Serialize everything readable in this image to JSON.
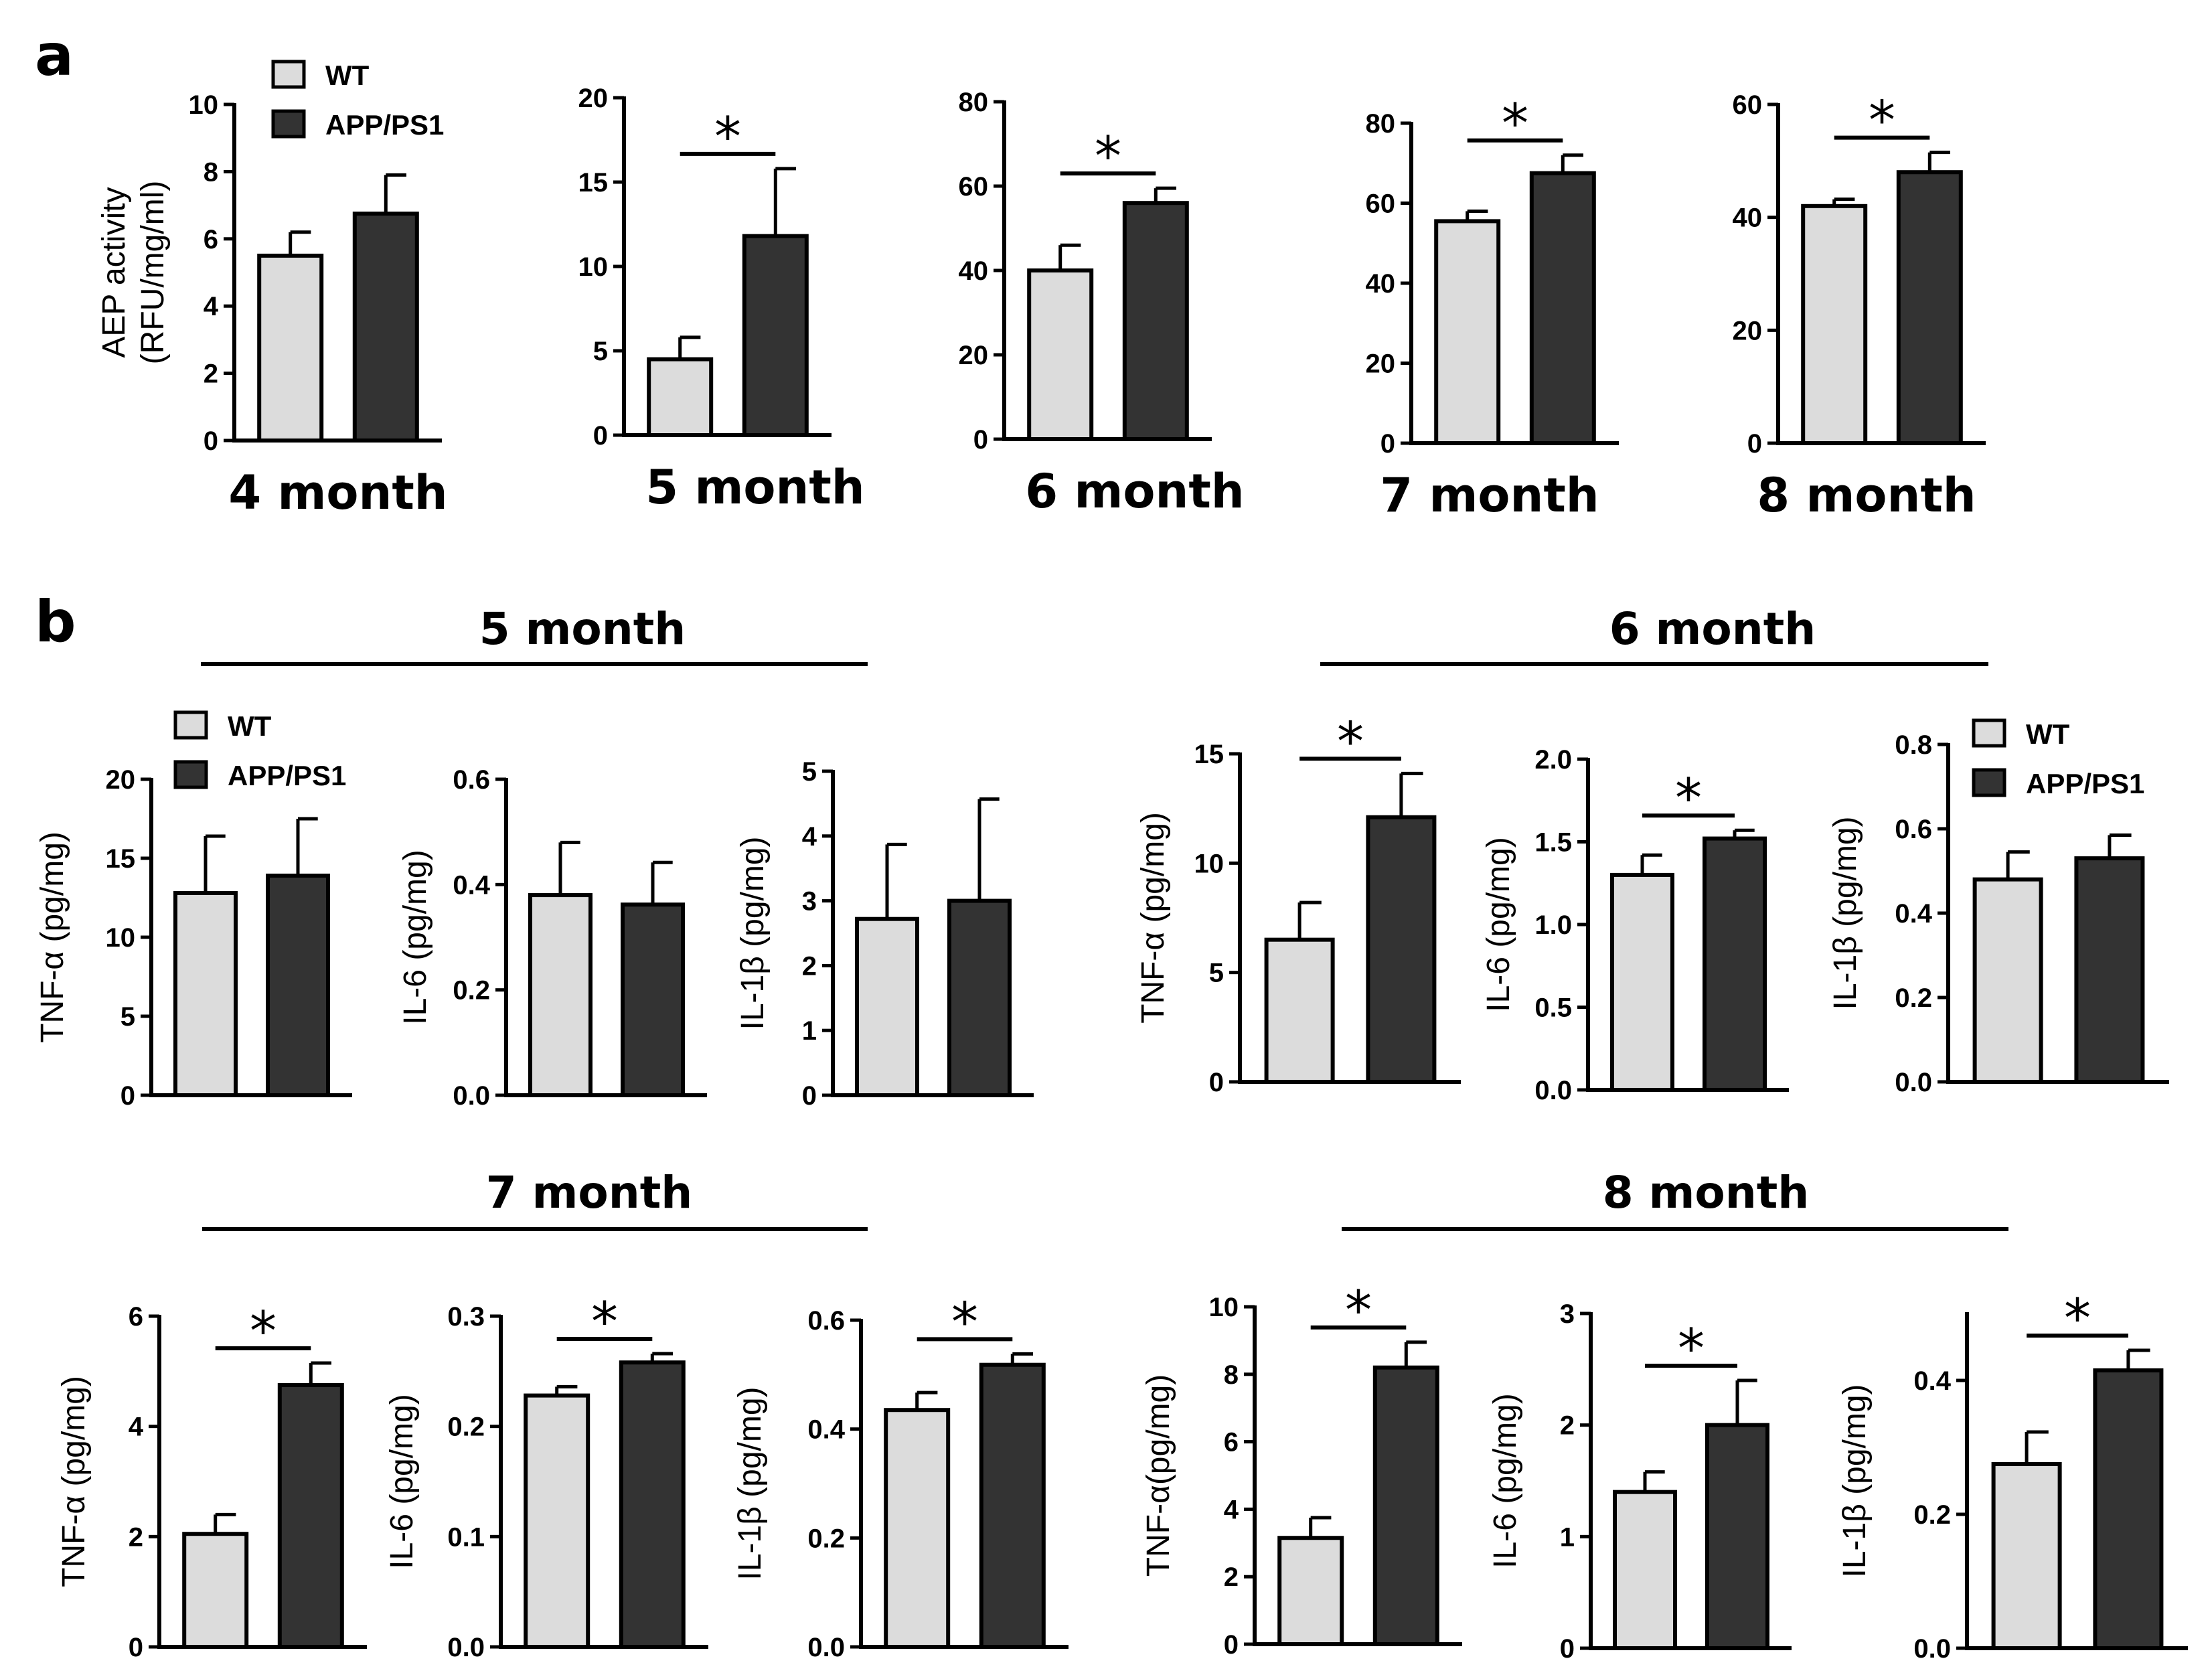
{
  "figure": {
    "panel_a_label": "a",
    "panel_b_label": "b",
    "groups_b": {
      "m5": "5 month",
      "m6": "6 month",
      "m7": "7 month",
      "m8": "8 month"
    }
  },
  "legend": {
    "wt": "WT",
    "app": "APP/PS1"
  },
  "colors": {
    "wt": "#dcdcdc",
    "app": "#333333",
    "axis": "#000000"
  },
  "chart_data": [
    {
      "id": "a4",
      "type": "bar",
      "xlabel": "4 month",
      "ylabel": "AEP activity (RFU/mg/ml)",
      "ylabel_line1": "AEP activity",
      "ylabel_line2": "(RFU/mg/ml)",
      "ylim": [
        0,
        10
      ],
      "ticks": [
        0,
        2,
        4,
        6,
        8,
        10
      ],
      "categories": [
        "WT",
        "APP/PS1"
      ],
      "values": [
        5.5,
        6.75
      ],
      "errors": [
        0.7,
        1.15
      ],
      "significant": false
    },
    {
      "id": "a5",
      "type": "bar",
      "xlabel": "5 month",
      "ylabel": "",
      "ylim": [
        0,
        20
      ],
      "ticks": [
        0,
        5,
        10,
        15,
        20
      ],
      "categories": [
        "WT",
        "APP/PS1"
      ],
      "values": [
        4.5,
        11.8
      ],
      "errors": [
        1.3,
        4.0
      ],
      "significant": true,
      "sig_label": "*"
    },
    {
      "id": "a6",
      "type": "bar",
      "xlabel": "6 month",
      "ylabel": "",
      "ylim": [
        0,
        80
      ],
      "ticks": [
        0,
        20,
        40,
        60,
        80
      ],
      "categories": [
        "WT",
        "APP/PS1"
      ],
      "values": [
        40,
        56
      ],
      "errors": [
        6,
        3.5
      ],
      "significant": true,
      "sig_label": "*"
    },
    {
      "id": "a7",
      "type": "bar",
      "xlabel": "7 month",
      "ylabel": "",
      "ylim": [
        0,
        80
      ],
      "ticks": [
        0,
        20,
        40,
        60,
        80
      ],
      "categories": [
        "WT",
        "APP/PS1"
      ],
      "values": [
        55.5,
        67.5
      ],
      "errors": [
        2.5,
        4.5
      ],
      "significant": true,
      "sig_label": "*"
    },
    {
      "id": "a8",
      "type": "bar",
      "xlabel": "8 month",
      "ylabel": "",
      "ylim": [
        0,
        60
      ],
      "ticks": [
        0,
        20,
        40,
        60
      ],
      "categories": [
        "WT",
        "APP/PS1"
      ],
      "values": [
        42,
        48
      ],
      "errors": [
        1.2,
        3.5
      ],
      "significant": true,
      "sig_label": "*"
    },
    {
      "id": "b5t",
      "type": "bar",
      "group": "5 month",
      "ylabel": "TNF-α (pg/mg)",
      "ylim": [
        0,
        20
      ],
      "ticks": [
        0,
        5,
        10,
        15,
        20
      ],
      "categories": [
        "WT",
        "APP/PS1"
      ],
      "values": [
        12.8,
        13.9
      ],
      "errors": [
        3.6,
        3.6
      ],
      "significant": false
    },
    {
      "id": "b5i6",
      "type": "bar",
      "group": "5 month",
      "ylabel": "IL-6 (pg/mg)",
      "ylim": [
        0,
        0.6
      ],
      "ticks": [
        "0.0",
        "0.2",
        "0.4",
        "0.6"
      ],
      "categories": [
        "WT",
        "APP/PS1"
      ],
      "values": [
        0.38,
        0.362
      ],
      "errors": [
        0.1,
        0.08
      ],
      "significant": false
    },
    {
      "id": "b5ib",
      "type": "bar",
      "group": "5 month",
      "ylabel": "IL-1β (pg/mg)",
      "ylim": [
        0,
        5
      ],
      "ticks": [
        0,
        1,
        2,
        3,
        4,
        5
      ],
      "categories": [
        "WT",
        "APP/PS1"
      ],
      "values": [
        2.72,
        3.0
      ],
      "errors": [
        1.15,
        1.57
      ],
      "significant": false
    },
    {
      "id": "b6t",
      "type": "bar",
      "group": "6 month",
      "ylabel": "TNF-α (pg/mg)",
      "ylim": [
        0,
        15
      ],
      "ticks": [
        0,
        5,
        10,
        15
      ],
      "categories": [
        "WT",
        "APP/PS1"
      ],
      "values": [
        6.5,
        12.1
      ],
      "errors": [
        1.7,
        2.0
      ],
      "significant": true,
      "sig_label": "*"
    },
    {
      "id": "b6i6",
      "type": "bar",
      "group": "6 month",
      "ylabel": "IL-6 (pg/mg)",
      "ylim": [
        0,
        2
      ],
      "ticks": [
        "0.0",
        "0.5",
        "1.0",
        "1.5",
        "2.0"
      ],
      "categories": [
        "WT",
        "APP/PS1"
      ],
      "values": [
        1.3,
        1.52
      ],
      "errors": [
        0.12,
        0.05
      ],
      "significant": true,
      "sig_label": "*"
    },
    {
      "id": "b6ib",
      "type": "bar",
      "group": "6 month",
      "ylabel": "IL-1β (pg/mg)",
      "ylim": [
        0,
        0.8
      ],
      "ticks": [
        "0.0",
        "0.2",
        "0.4",
        "0.6",
        "0.8"
      ],
      "categories": [
        "WT",
        "APP/PS1"
      ],
      "values": [
        0.48,
        0.53
      ],
      "errors": [
        0.065,
        0.055
      ],
      "significant": false
    },
    {
      "id": "b7t",
      "type": "bar",
      "group": "7 month",
      "ylabel": "TNF-α (pg/mg)",
      "ylim": [
        0,
        6
      ],
      "ticks": [
        0,
        2,
        4,
        6
      ],
      "categories": [
        "WT",
        "APP/PS1"
      ],
      "values": [
        2.05,
        4.75
      ],
      "errors": [
        0.35,
        0.4
      ],
      "significant": true,
      "sig_label": "*"
    },
    {
      "id": "b7i6",
      "type": "bar",
      "group": "7 month",
      "ylabel": "IL-6 (pg/mg)",
      "ylim": [
        0,
        0.3
      ],
      "ticks": [
        "0.0",
        "0.1",
        "0.2",
        "0.3"
      ],
      "categories": [
        "WT",
        "APP/PS1"
      ],
      "values": [
        0.228,
        0.258
      ],
      "errors": [
        0.008,
        0.008
      ],
      "significant": true,
      "sig_label": "*"
    },
    {
      "id": "b7ib",
      "type": "bar",
      "group": "7 month",
      "ylabel": "IL-1β (pg/mg)",
      "ylim": [
        0,
        0.6
      ],
      "ticks": [
        "0.0",
        "0.2",
        "0.4",
        "0.6"
      ],
      "categories": [
        "WT",
        "APP/PS1"
      ],
      "values": [
        0.435,
        0.518
      ],
      "errors": [
        0.032,
        0.02
      ],
      "significant": true,
      "sig_label": "*"
    },
    {
      "id": "b8t",
      "type": "bar",
      "group": "8 month",
      "ylabel": "TNF-α(pg/mg)",
      "ylim": [
        0,
        10
      ],
      "ticks": [
        0,
        2,
        4,
        6,
        8,
        10
      ],
      "categories": [
        "WT",
        "APP/PS1"
      ],
      "values": [
        3.15,
        8.2
      ],
      "errors": [
        0.6,
        0.75
      ],
      "significant": true,
      "sig_label": "*"
    },
    {
      "id": "b8i6",
      "type": "bar",
      "group": "8 month",
      "ylabel": "IL-6 (pg/mg)",
      "ylim": [
        0,
        3
      ],
      "ticks": [
        0,
        1,
        2,
        3
      ],
      "categories": [
        "WT",
        "APP/PS1"
      ],
      "values": [
        1.4,
        2.0
      ],
      "errors": [
        0.18,
        0.4
      ],
      "significant": true,
      "sig_label": "*"
    },
    {
      "id": "b8ib",
      "type": "bar",
      "group": "8 month",
      "ylabel": "IL-1β (pg/mg)",
      "ylim": [
        0,
        0.5
      ],
      "ticks": [
        "0.0",
        "0.2",
        "0.4"
      ],
      "categories": [
        "WT",
        "APP/PS1"
      ],
      "values": [
        0.275,
        0.415
      ],
      "errors": [
        0.048,
        0.03
      ],
      "significant": true,
      "sig_label": "*"
    }
  ]
}
